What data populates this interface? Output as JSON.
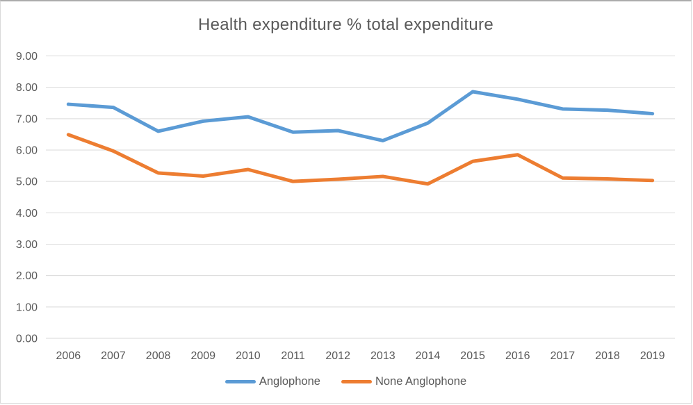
{
  "chart_data": {
    "type": "line",
    "title": "Health expenditure % total expenditure",
    "categories": [
      "2006",
      "2007",
      "2008",
      "2009",
      "2010",
      "2011",
      "2012",
      "2013",
      "2014",
      "2015",
      "2016",
      "2017",
      "2018",
      "2019"
    ],
    "series": [
      {
        "name": "Anglophone",
        "color": "#5B9BD5",
        "values": [
          7.46,
          7.36,
          6.6,
          6.92,
          7.06,
          6.57,
          6.62,
          6.3,
          6.86,
          7.86,
          7.62,
          7.31,
          7.27,
          7.16
        ]
      },
      {
        "name": "None Anglophone",
        "color": "#ED7D31",
        "values": [
          6.49,
          5.97,
          5.27,
          5.17,
          5.38,
          5.0,
          5.07,
          5.16,
          4.92,
          5.64,
          5.85,
          5.11,
          5.08,
          5.03
        ]
      }
    ],
    "xlabel": "",
    "ylabel": "",
    "ylim": [
      0,
      9
    ],
    "ytick_step": 1,
    "ytick_decimals": 2,
    "grid": true,
    "legend_position": "bottom"
  },
  "colors": {
    "grid": "#d9d9d9",
    "text": "#595959",
    "background": "#ffffff",
    "frame_border": "#d9d9d9"
  }
}
